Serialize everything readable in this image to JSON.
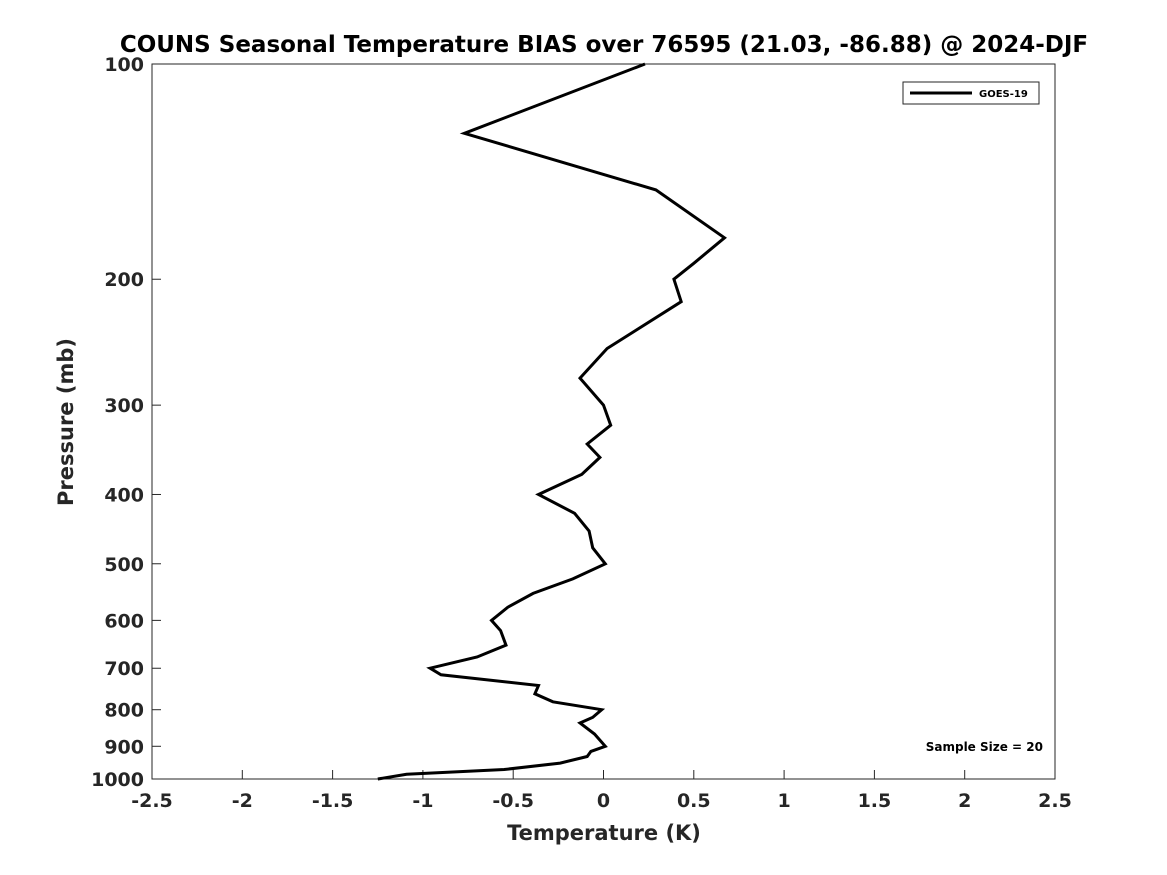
{
  "chart_data": {
    "type": "line",
    "title": "COUNS Seasonal Temperature BIAS over 76595 (21.03, -86.88) @ 2024-DJF",
    "xlabel": "Temperature (K)",
    "ylabel": "Pressure (mb)",
    "xlim": [
      -2.5,
      2.5
    ],
    "ylim": [
      100,
      1000
    ],
    "y_scale": "log",
    "y_reversed": true,
    "x_ticks": [
      "-2.5",
      "-2",
      "-1.5",
      "-1",
      "-0.5",
      "0",
      "0.5",
      "1",
      "1.5",
      "2",
      "2.5"
    ],
    "y_ticks": [
      "100",
      "200",
      "300",
      "400",
      "500",
      "600",
      "700",
      "800",
      "900",
      "1000"
    ],
    "grid": false,
    "legend_position": "top-right",
    "series": [
      {
        "name": "GOES-19",
        "color": "#000000",
        "points": [
          {
            "x": 0.23,
            "y": 100
          },
          {
            "x": -0.77,
            "y": 125
          },
          {
            "x": 0.29,
            "y": 150
          },
          {
            "x": 0.67,
            "y": 175
          },
          {
            "x": 0.5,
            "y": 190
          },
          {
            "x": 0.39,
            "y": 200
          },
          {
            "x": 0.43,
            "y": 215
          },
          {
            "x": 0.02,
            "y": 250
          },
          {
            "x": -0.13,
            "y": 275
          },
          {
            "x": 0.0,
            "y": 300
          },
          {
            "x": 0.04,
            "y": 320
          },
          {
            "x": -0.09,
            "y": 340
          },
          {
            "x": -0.02,
            "y": 355
          },
          {
            "x": -0.12,
            "y": 375
          },
          {
            "x": -0.36,
            "y": 400
          },
          {
            "x": -0.16,
            "y": 425
          },
          {
            "x": -0.08,
            "y": 450
          },
          {
            "x": -0.06,
            "y": 475
          },
          {
            "x": 0.01,
            "y": 500
          },
          {
            "x": -0.17,
            "y": 525
          },
          {
            "x": -0.39,
            "y": 550
          },
          {
            "x": -0.53,
            "y": 575
          },
          {
            "x": -0.62,
            "y": 600
          },
          {
            "x": -0.57,
            "y": 620
          },
          {
            "x": -0.54,
            "y": 650
          },
          {
            "x": -0.7,
            "y": 675
          },
          {
            "x": -0.96,
            "y": 700
          },
          {
            "x": -0.9,
            "y": 715
          },
          {
            "x": -0.36,
            "y": 740
          },
          {
            "x": -0.38,
            "y": 760
          },
          {
            "x": -0.28,
            "y": 780
          },
          {
            "x": -0.01,
            "y": 800
          },
          {
            "x": -0.06,
            "y": 820
          },
          {
            "x": -0.13,
            "y": 835
          },
          {
            "x": -0.05,
            "y": 865
          },
          {
            "x": 0.01,
            "y": 900
          },
          {
            "x": -0.07,
            "y": 915
          },
          {
            "x": -0.09,
            "y": 930
          },
          {
            "x": -0.24,
            "y": 950
          },
          {
            "x": -0.55,
            "y": 970
          },
          {
            "x": -1.09,
            "y": 985
          },
          {
            "x": -1.25,
            "y": 1000
          }
        ]
      }
    ],
    "annotations": [
      {
        "text": "Sample Size = 20"
      }
    ]
  }
}
